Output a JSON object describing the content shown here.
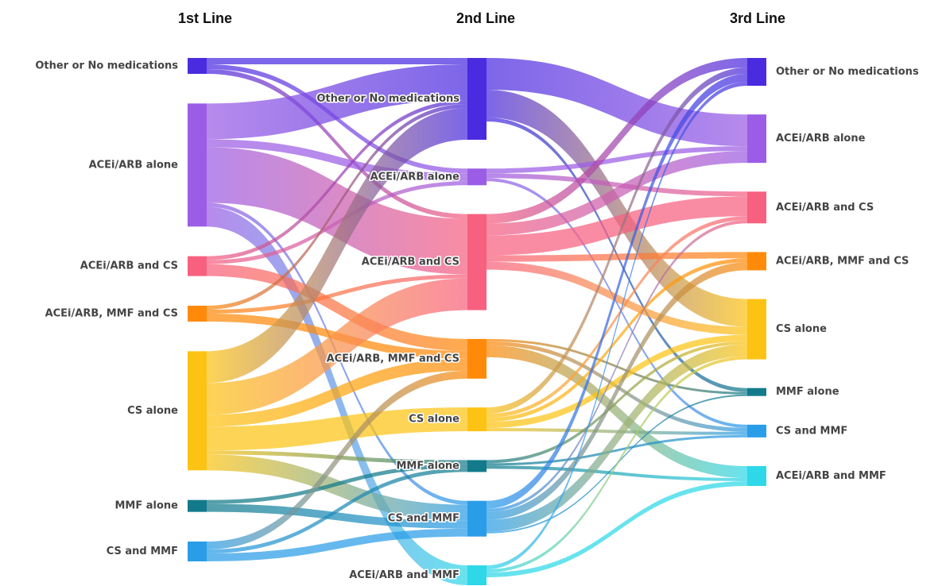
{
  "chart_data": {
    "type": "sankey",
    "columns": [
      {
        "title": "1st Line",
        "nodes": [
          {
            "label": "Other or No medications",
            "color": "#4a2be0"
          },
          {
            "label": "ACEi/ARB alone",
            "color": "#9b5de5"
          },
          {
            "label": "ACEi/ARB and CS",
            "color": "#f7607f"
          },
          {
            "label": "ACEi/ARB, MMF and CS",
            "color": "#ff8a0a"
          },
          {
            "label": "CS alone",
            "color": "#fcc314"
          },
          {
            "label": "MMF alone",
            "color": "#127a8a"
          },
          {
            "label": "CS and MMF",
            "color": "#2a9de8"
          }
        ],
        "links": [
          {
            "source": 0,
            "target": 0,
            "value": 8
          },
          {
            "source": 0,
            "target": 1,
            "value": 6
          },
          {
            "source": 0,
            "target": 2,
            "value": 6
          },
          {
            "source": 1,
            "target": 0,
            "value": 45
          },
          {
            "source": 1,
            "target": 1,
            "value": 10
          },
          {
            "source": 1,
            "target": 2,
            "value": 70
          },
          {
            "source": 1,
            "target": 6,
            "value": 5
          },
          {
            "source": 1,
            "target": 7,
            "value": 25
          },
          {
            "source": 2,
            "target": 0,
            "value": 5
          },
          {
            "source": 2,
            "target": 1,
            "value": 5
          },
          {
            "source": 2,
            "target": 3,
            "value": 15
          },
          {
            "source": 3,
            "target": 0,
            "value": 5
          },
          {
            "source": 3,
            "target": 2,
            "value": 5
          },
          {
            "source": 3,
            "target": 3,
            "value": 10
          },
          {
            "source": 4,
            "target": 0,
            "value": 40
          },
          {
            "source": 4,
            "target": 2,
            "value": 40
          },
          {
            "source": 4,
            "target": 3,
            "value": 15
          },
          {
            "source": 4,
            "target": 4,
            "value": 30
          },
          {
            "source": 4,
            "target": 5,
            "value": 5
          },
          {
            "source": 4,
            "target": 6,
            "value": 20
          },
          {
            "source": 5,
            "target": 5,
            "value": 5
          },
          {
            "source": 5,
            "target": 6,
            "value": 10
          },
          {
            "source": 6,
            "target": 3,
            "value": 10
          },
          {
            "source": 6,
            "target": 5,
            "value": 5
          },
          {
            "source": 6,
            "target": 6,
            "value": 10
          }
        ]
      },
      {
        "title": "2nd Line",
        "nodes": [
          {
            "label": "Other or No medications",
            "color": "#4a2be0"
          },
          {
            "label": "ACEi/ARB alone",
            "color": "#9b5de5"
          },
          {
            "label": "ACEi/ARB and CS",
            "color": "#f7607f"
          },
          {
            "label": "ACEi/ARB, MMF and CS",
            "color": "#ff8a0a"
          },
          {
            "label": "CS alone",
            "color": "#fcc314"
          },
          {
            "label": "MMF alone",
            "color": "#127a8a"
          },
          {
            "label": "CS and MMF",
            "color": "#2a9de8"
          },
          {
            "label": "ACEi/ARB and MMF",
            "color": "#2ed8e8"
          }
        ],
        "links": [
          {
            "source": 0,
            "target": 1,
            "value": 40
          },
          {
            "source": 0,
            "target": 4,
            "value": 35
          },
          {
            "source": 0,
            "target": 5,
            "value": 5
          },
          {
            "source": 1,
            "target": 1,
            "value": 6
          },
          {
            "source": 1,
            "target": 2,
            "value": 6
          },
          {
            "source": 1,
            "target": 6,
            "value": 4
          },
          {
            "source": 2,
            "target": 0,
            "value": 12
          },
          {
            "source": 2,
            "target": 1,
            "value": 15
          },
          {
            "source": 2,
            "target": 2,
            "value": 25
          },
          {
            "source": 2,
            "target": 3,
            "value": 8
          },
          {
            "source": 2,
            "target": 4,
            "value": 10
          },
          {
            "source": 3,
            "target": 5,
            "value": 3
          },
          {
            "source": 3,
            "target": 6,
            "value": 5
          },
          {
            "source": 3,
            "target": 7,
            "value": 15
          },
          {
            "source": 4,
            "target": 0,
            "value": 8
          },
          {
            "source": 4,
            "target": 2,
            "value": 5
          },
          {
            "source": 4,
            "target": 3,
            "value": 5
          },
          {
            "source": 4,
            "target": 4,
            "value": 8
          },
          {
            "source": 4,
            "target": 6,
            "value": 4
          },
          {
            "source": 5,
            "target": 4,
            "value": 4
          },
          {
            "source": 5,
            "target": 6,
            "value": 3
          },
          {
            "source": 5,
            "target": 7,
            "value": 4
          },
          {
            "source": 6,
            "target": 0,
            "value": 10
          },
          {
            "source": 6,
            "target": 2,
            "value": 4
          },
          {
            "source": 6,
            "target": 3,
            "value": 10
          },
          {
            "source": 6,
            "target": 4,
            "value": 15
          },
          {
            "source": 6,
            "target": 5,
            "value": 2
          },
          {
            "source": 7,
            "target": 0,
            "value": 5
          },
          {
            "source": 7,
            "target": 4,
            "value": 4
          },
          {
            "source": 7,
            "target": 7,
            "value": 6
          }
        ]
      },
      {
        "title": "3rd Line",
        "nodes": [
          {
            "label": "Other or No medications",
            "color": "#4a2be0"
          },
          {
            "label": "ACEi/ARB alone",
            "color": "#9b5de5"
          },
          {
            "label": "ACEi/ARB and CS",
            "color": "#f7607f"
          },
          {
            "label": "ACEi/ARB, MMF and CS",
            "color": "#ff8a0a"
          },
          {
            "label": "CS alone",
            "color": "#fcc314"
          },
          {
            "label": "MMF alone",
            "color": "#127a8a"
          },
          {
            "label": "CS and MMF",
            "color": "#2a9de8"
          },
          {
            "label": "ACEi/ARB and MMF",
            "color": "#2ed8e8"
          }
        ]
      }
    ]
  }
}
